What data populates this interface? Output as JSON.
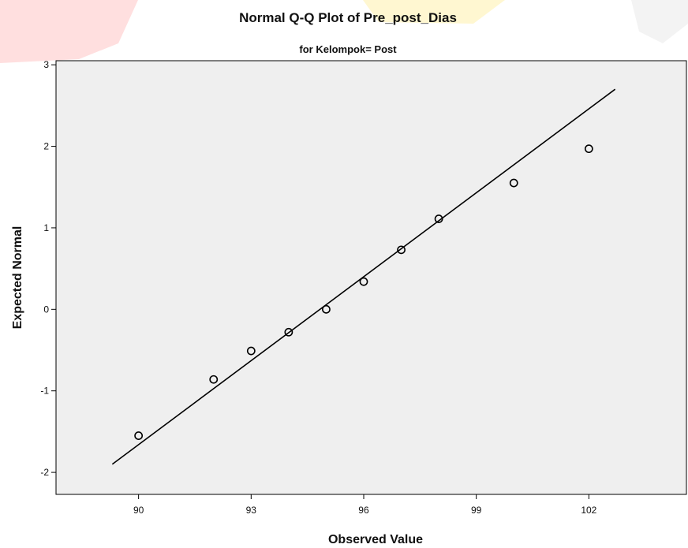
{
  "chart_data": {
    "type": "scatter",
    "title": "Normal Q-Q Plot of Pre_post_Dias",
    "subtitle": "for Kelompok= Post",
    "xlabel": "Observed Value",
    "ylabel": "Expected Normal",
    "xlim": [
      87.8,
      104.6
    ],
    "ylim": [
      -2.27,
      3.05
    ],
    "xticks": [
      90,
      93,
      96,
      99,
      102
    ],
    "yticks": [
      -2,
      -1,
      0,
      1,
      2,
      3
    ],
    "points": [
      {
        "x": 90,
        "y": -1.55
      },
      {
        "x": 92,
        "y": -0.86
      },
      {
        "x": 93,
        "y": -0.51
      },
      {
        "x": 94,
        "y": -0.28
      },
      {
        "x": 95,
        "y": 0.0
      },
      {
        "x": 96,
        "y": 0.34
      },
      {
        "x": 97,
        "y": 0.73
      },
      {
        "x": 98,
        "y": 1.11
      },
      {
        "x": 100,
        "y": 1.55
      },
      {
        "x": 102,
        "y": 1.97
      }
    ],
    "reference_line": {
      "x": [
        89.3,
        102.7
      ],
      "y": [
        -1.9,
        2.7
      ]
    },
    "grid": false,
    "legend": "none",
    "colors": {
      "plot_background": "#efefef",
      "marker": "#000000",
      "line": "#000000"
    }
  }
}
